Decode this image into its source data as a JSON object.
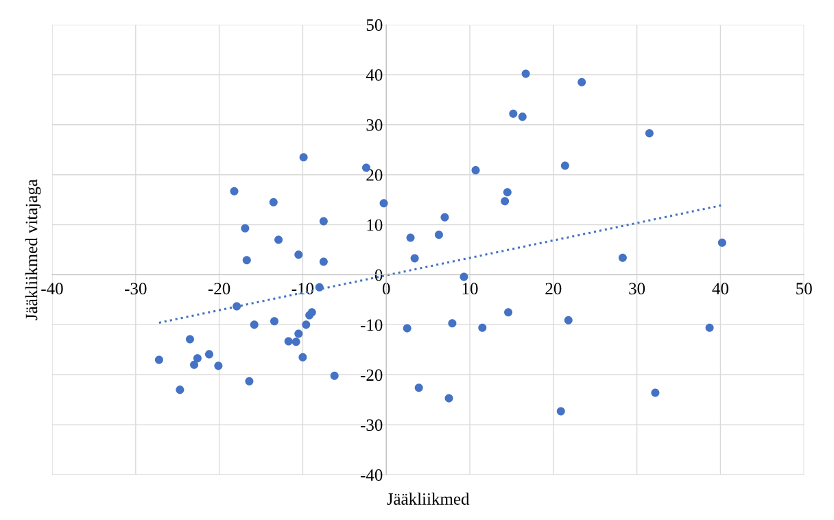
{
  "chart_data": {
    "type": "scatter",
    "xlabel": "Jääkliikmed",
    "ylabel": "Jääkliikmed vitajaga",
    "xlim": [
      -40,
      50
    ],
    "xticks": [
      -40,
      -30,
      -20,
      -10,
      0,
      10,
      20,
      30,
      40,
      50
    ],
    "ylim": [
      -40,
      50
    ],
    "yticks": [
      -40,
      -30,
      -20,
      -10,
      0,
      10,
      20,
      30,
      40,
      50
    ],
    "grid": true,
    "series": [
      {
        "color": "#4472c4",
        "marker": "circle",
        "x": [
          -27.2,
          -24.7,
          -23.5,
          -23.0,
          -22.6,
          -21.2,
          -20.1,
          -18.2,
          -17.9,
          -16.9,
          -16.7,
          -16.4,
          -15.8,
          -13.5,
          -13.4,
          -12.9,
          -11.7,
          -10.8,
          -10.5,
          -10.5,
          -10.0,
          -9.9,
          -9.6,
          -9.2,
          -8.9,
          -8.0,
          -7.5,
          -7.5,
          -6.2,
          -2.4,
          -0.3,
          2.5,
          2.9,
          3.4,
          3.9,
          6.3,
          7.0,
          7.5,
          7.9,
          9.3,
          10.7,
          11.5,
          14.2,
          14.5,
          14.6,
          15.2,
          16.3,
          16.7,
          20.9,
          21.4,
          21.8,
          23.4,
          28.3,
          31.5,
          32.2,
          38.7,
          40.2
        ],
        "values": [
          -17.0,
          -23.0,
          -12.9,
          -18.0,
          -16.7,
          -15.9,
          -18.2,
          16.7,
          -6.3,
          9.3,
          2.9,
          -21.3,
          -10.0,
          14.5,
          -9.3,
          7.0,
          -13.3,
          -13.4,
          -11.8,
          4.0,
          -16.5,
          23.5,
          -10.0,
          -8.1,
          -7.5,
          -2.5,
          10.7,
          2.6,
          -20.2,
          21.4,
          14.3,
          -10.7,
          7.4,
          3.3,
          -22.6,
          8.0,
          11.5,
          -24.7,
          -9.7,
          -0.4,
          20.9,
          -10.6,
          14.7,
          16.5,
          -7.5,
          32.2,
          31.6,
          40.2,
          -27.3,
          21.8,
          -9.1,
          38.5,
          3.4,
          28.3,
          -23.6,
          -10.6,
          6.4
        ]
      },
      {
        "color": "#4472c4",
        "type": "line",
        "line_style": "dotted",
        "x": [
          -27.2,
          40.2
        ],
        "values": [
          -9.6,
          13.9
        ]
      }
    ]
  }
}
